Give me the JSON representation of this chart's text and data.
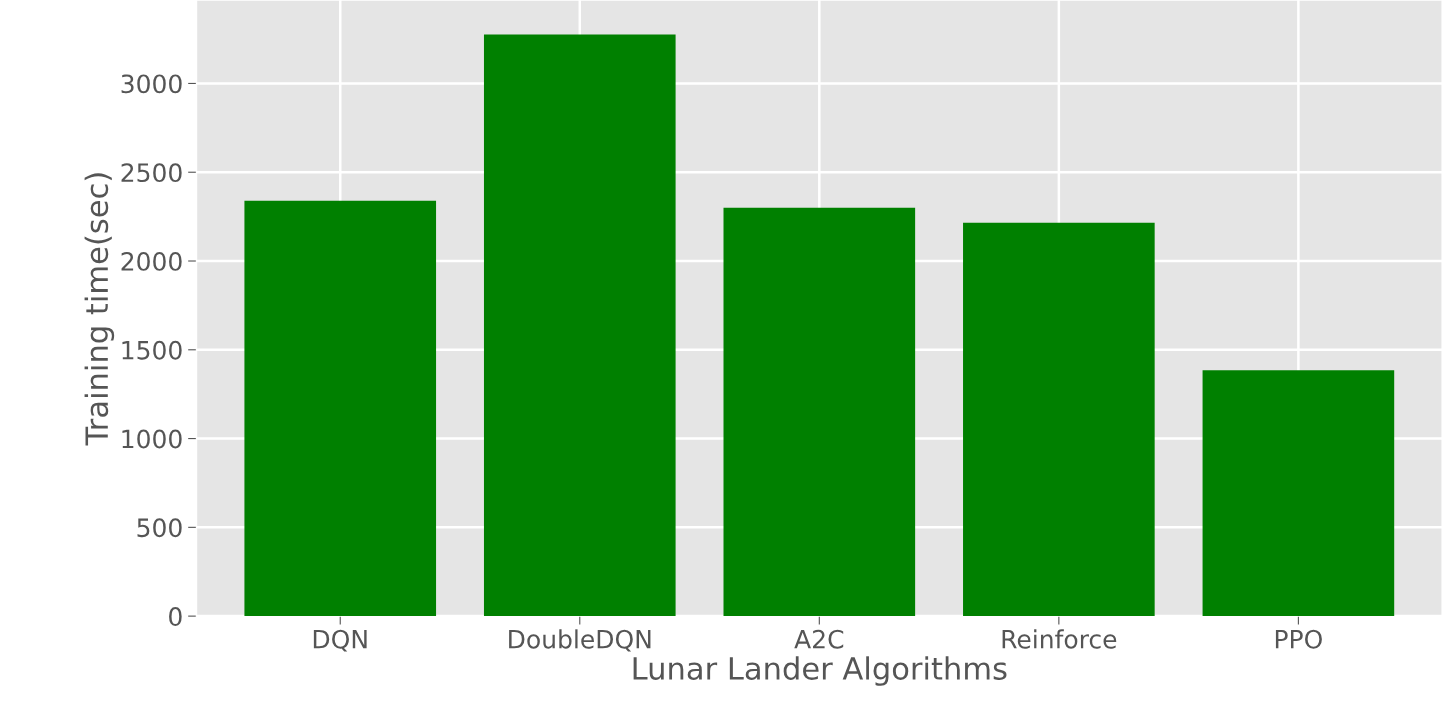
{
  "chart_data": {
    "type": "bar",
    "xlabel": "Lunar Lander Algorithms",
    "ylabel": "Training time(sec)",
    "categories": [
      "DQN",
      "DoubleDQN",
      "A2C",
      "Reinforce",
      "PPO"
    ],
    "values": [
      2340,
      3275,
      2300,
      2215,
      1385
    ],
    "color": "#008000",
    "ylim": [
      0,
      3470
    ],
    "yticks": [
      0,
      500,
      1000,
      1500,
      2000,
      2500,
      3000
    ],
    "grid": true
  }
}
